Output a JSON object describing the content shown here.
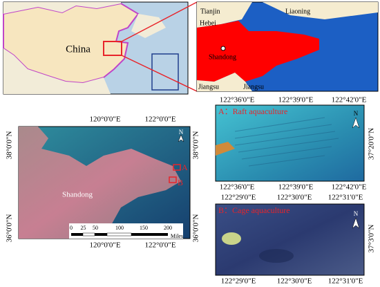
{
  "china_map": {
    "label": "China"
  },
  "shandong_map": {
    "labels": [
      "Tianjin",
      "Liaoning",
      "Hebei",
      "Shandong",
      "Jiangsu",
      "Jiangsu"
    ]
  },
  "overview": {
    "top_lon": [
      "120°0'0\"E",
      "122°0'0\"E"
    ],
    "bottom_lon": [
      "120°0'0\"E",
      "122°0'0\"E"
    ],
    "left_lat": [
      "38°0'0\"N",
      "36°0'0\"N"
    ],
    "right_lat": [
      "38°0'0\"N",
      "36°0'0\"N"
    ],
    "region_label": "Shandong",
    "site_a": "A",
    "site_b": "B",
    "north": "N",
    "scale_labels": [
      0,
      25,
      50,
      100,
      150,
      200
    ],
    "scale_unit": "Miles"
  },
  "panel_a": {
    "title": "A：Raft aquaculture",
    "top_lon": [
      "122°36'0\"E",
      "122°39'0\"E",
      "122°42'0\"E"
    ],
    "bottom_lon": [
      "122°36'0\"E",
      "122°39'0\"E",
      "122°42'0\"E"
    ],
    "right_lat": [
      "37°20'0\"N"
    ],
    "north": "N"
  },
  "panel_b": {
    "title": "B：Cage aquaculture",
    "top_lon": [
      "122°29'0\"E",
      "122°30'0\"E",
      "122°31'0\"E"
    ],
    "bottom_lon": [
      "122°29'0\"E",
      "122°30'0\"E",
      "122°31'0\"E"
    ],
    "right_lat": [
      "37°3'0\"N"
    ],
    "north": "N"
  }
}
